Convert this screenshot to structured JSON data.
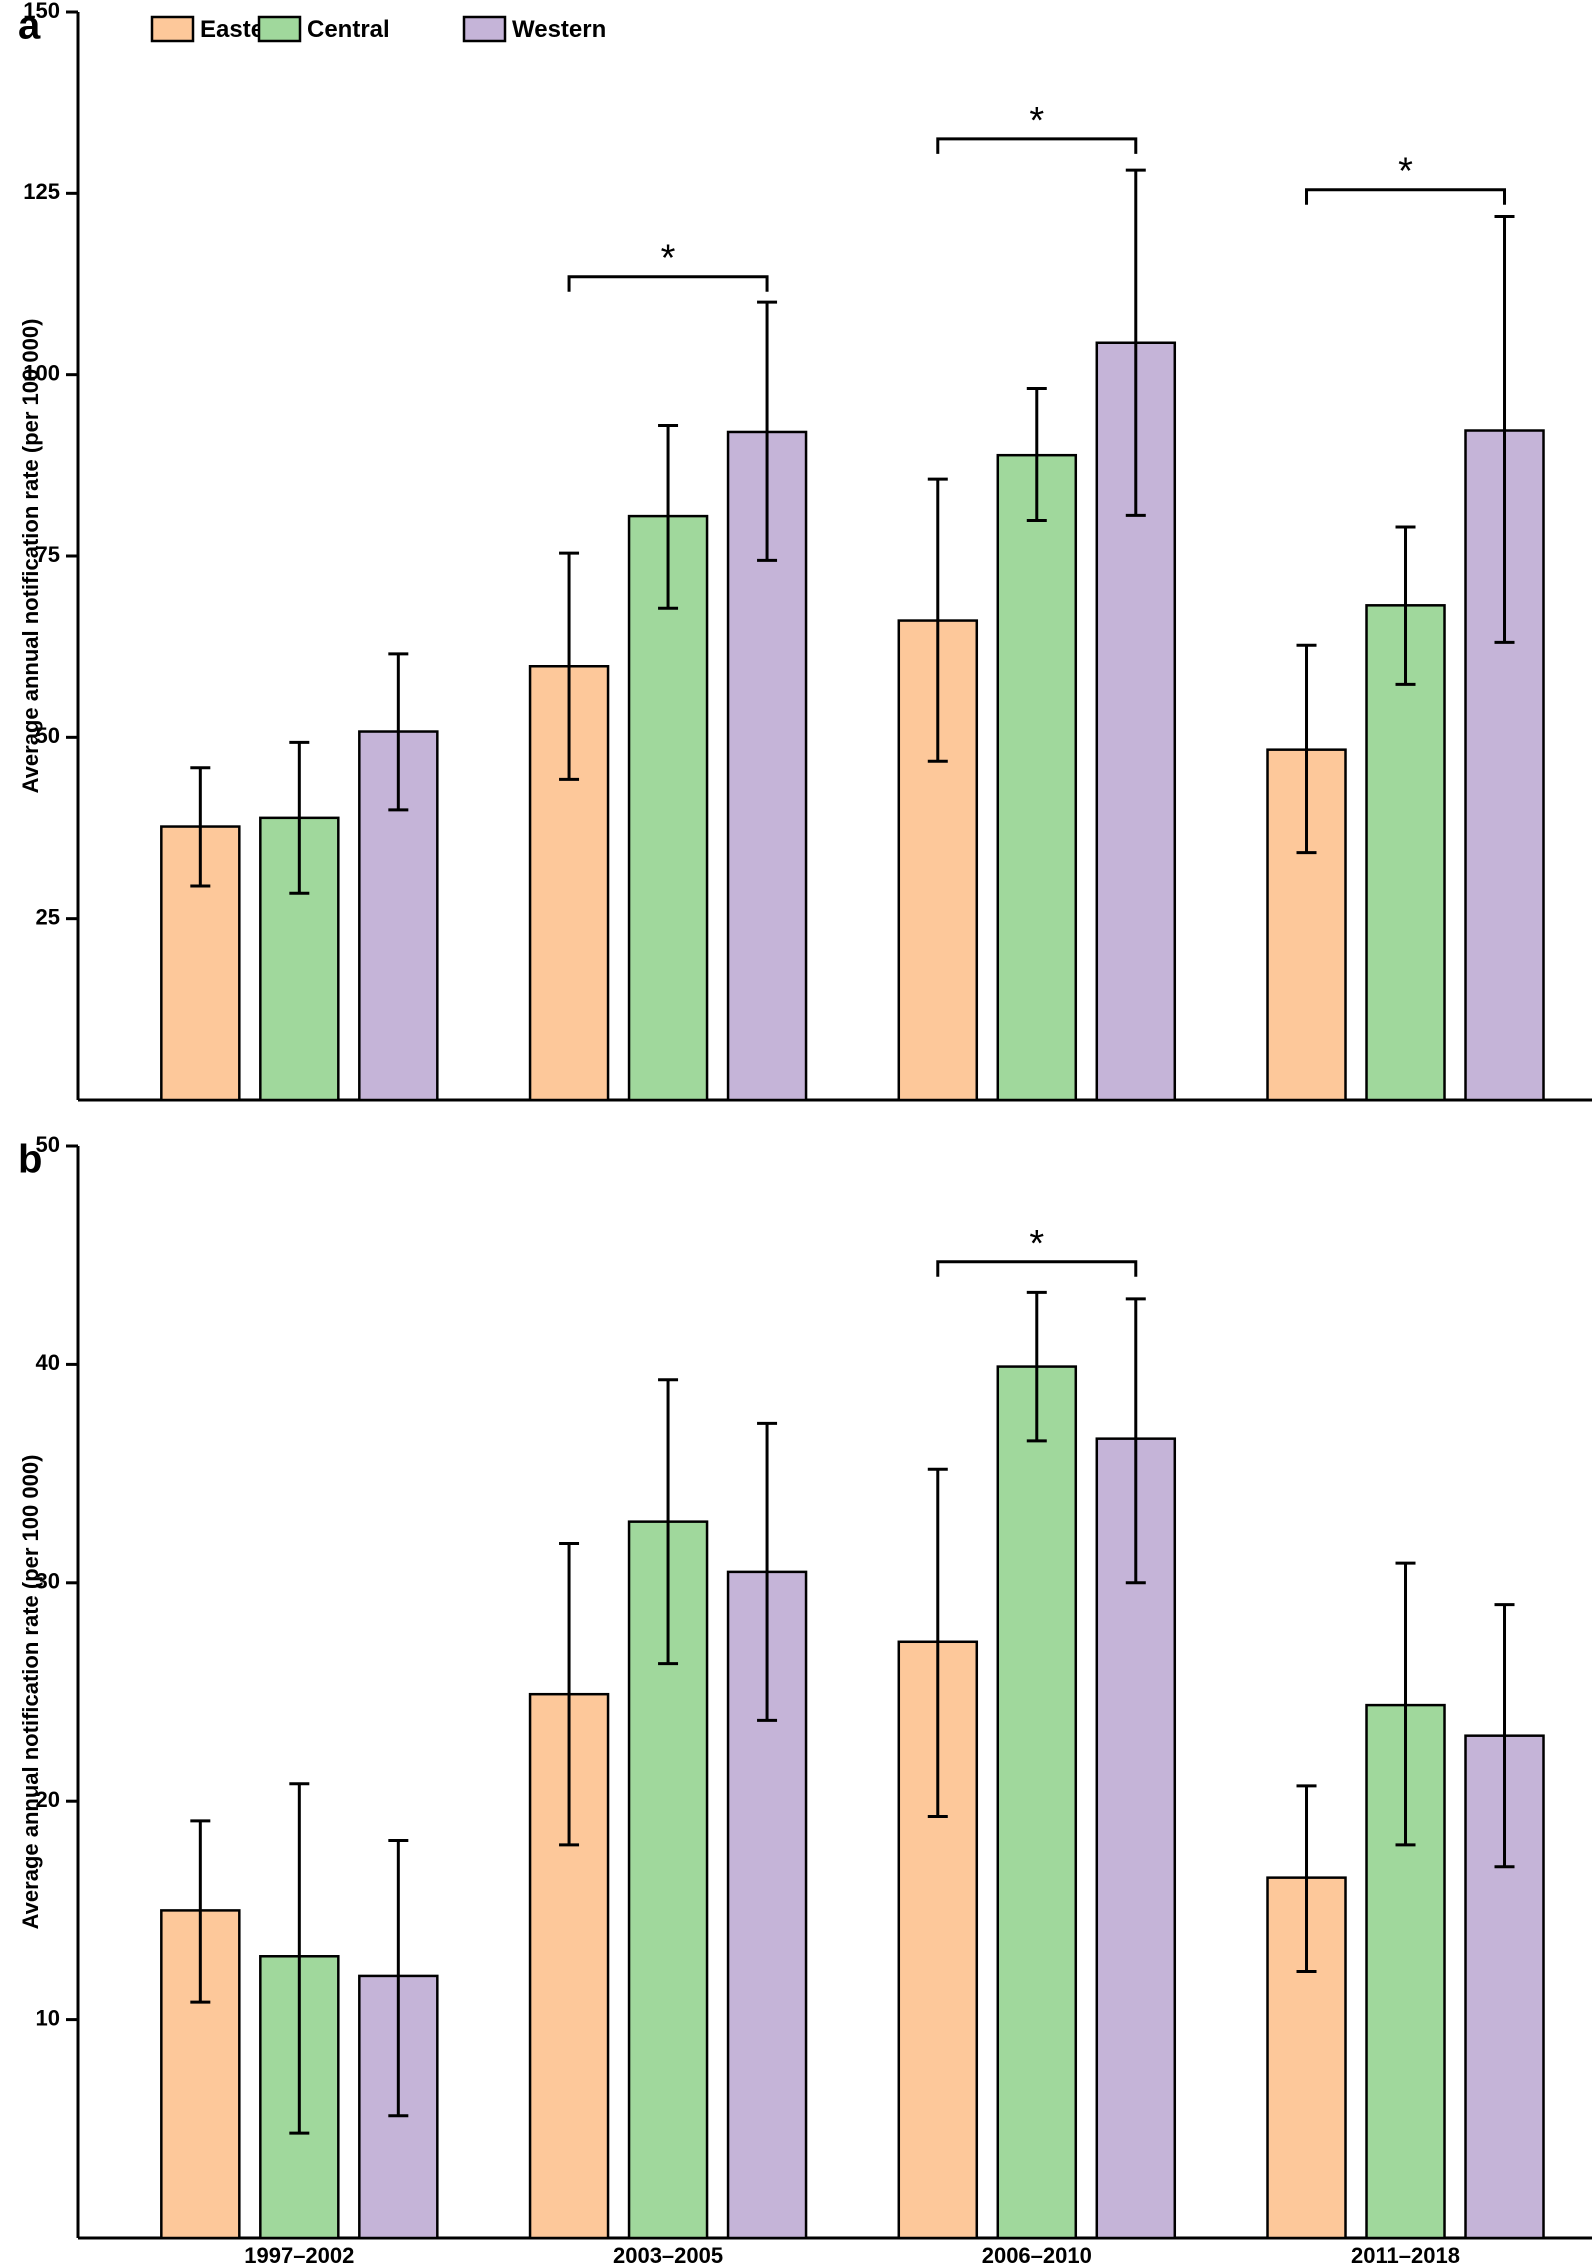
{
  "legend": [
    {
      "label": "Eastern",
      "color": "#FDC89A"
    },
    {
      "label": "Central",
      "color": "#A0D89C"
    },
    {
      "label": "Western",
      "color": "#C5B4D8"
    }
  ],
  "chart_data": [
    {
      "panel_label": "a",
      "type": "bar",
      "categories": [
        "1997–2002",
        "2003–2005",
        "2006–2010",
        "2011–2018"
      ],
      "ylabel": "Average annual notification rate (per 100 000)",
      "xlabel": "",
      "ylim": [
        0,
        150
      ],
      "yticks": [
        25,
        50,
        75,
        100,
        125,
        150
      ],
      "show_category_labels": false,
      "series": [
        {
          "name": "Eastern",
          "values": [
            37.7,
            59.8,
            66.1,
            48.3
          ],
          "err_low": [
            29.5,
            44.2,
            46.7,
            34.1
          ],
          "err_high": [
            45.8,
            75.4,
            85.6,
            62.7
          ]
        },
        {
          "name": "Central",
          "values": [
            38.9,
            80.5,
            88.9,
            68.2
          ],
          "err_low": [
            28.5,
            67.8,
            79.9,
            57.3
          ],
          "err_high": [
            49.3,
            93.0,
            98.1,
            79.0
          ]
        },
        {
          "name": "Western",
          "values": [
            50.8,
            92.1,
            104.4,
            92.3
          ],
          "err_low": [
            40.0,
            74.4,
            80.6,
            63.1
          ],
          "err_high": [
            61.5,
            110.0,
            128.2,
            121.8
          ]
        }
      ],
      "significance": [
        {
          "category": 1,
          "from_series": 0,
          "to_series": 2,
          "y": 113.5,
          "symbol": "*"
        },
        {
          "category": 2,
          "from_series": 0,
          "to_series": 2,
          "y": 132.5,
          "symbol": "*"
        },
        {
          "category": 3,
          "from_series": 0,
          "to_series": 2,
          "y": 125.5,
          "symbol": "*"
        }
      ]
    },
    {
      "panel_label": "b",
      "type": "bar",
      "categories": [
        "1997–2002",
        "2003–2005",
        "2006–2010",
        "2011–2018"
      ],
      "ylabel": "Average annual notification rate (per 100 000)",
      "xlabel": "",
      "ylim": [
        0,
        50
      ],
      "yticks": [
        10,
        20,
        30,
        40,
        50
      ],
      "show_category_labels": true,
      "series": [
        {
          "name": "Eastern",
          "values": [
            15.0,
            24.9,
            27.3,
            16.5
          ],
          "err_low": [
            10.8,
            18.0,
            19.3,
            12.2
          ],
          "err_high": [
            19.1,
            31.8,
            35.2,
            20.7
          ]
        },
        {
          "name": "Central",
          "values": [
            12.9,
            32.8,
            39.9,
            24.4
          ],
          "err_low": [
            4.8,
            26.3,
            36.5,
            18.0
          ],
          "err_high": [
            20.8,
            39.3,
            43.3,
            30.9
          ]
        },
        {
          "name": "Western",
          "values": [
            12.0,
            30.5,
            36.6,
            23.0
          ],
          "err_low": [
            5.6,
            23.7,
            30.0,
            17.0
          ],
          "err_high": [
            18.2,
            37.3,
            43.0,
            29.0
          ]
        }
      ],
      "significance": [
        {
          "category": 2,
          "from_series": 0,
          "to_series": 2,
          "y": 44.7,
          "symbol": "*"
        }
      ]
    }
  ]
}
